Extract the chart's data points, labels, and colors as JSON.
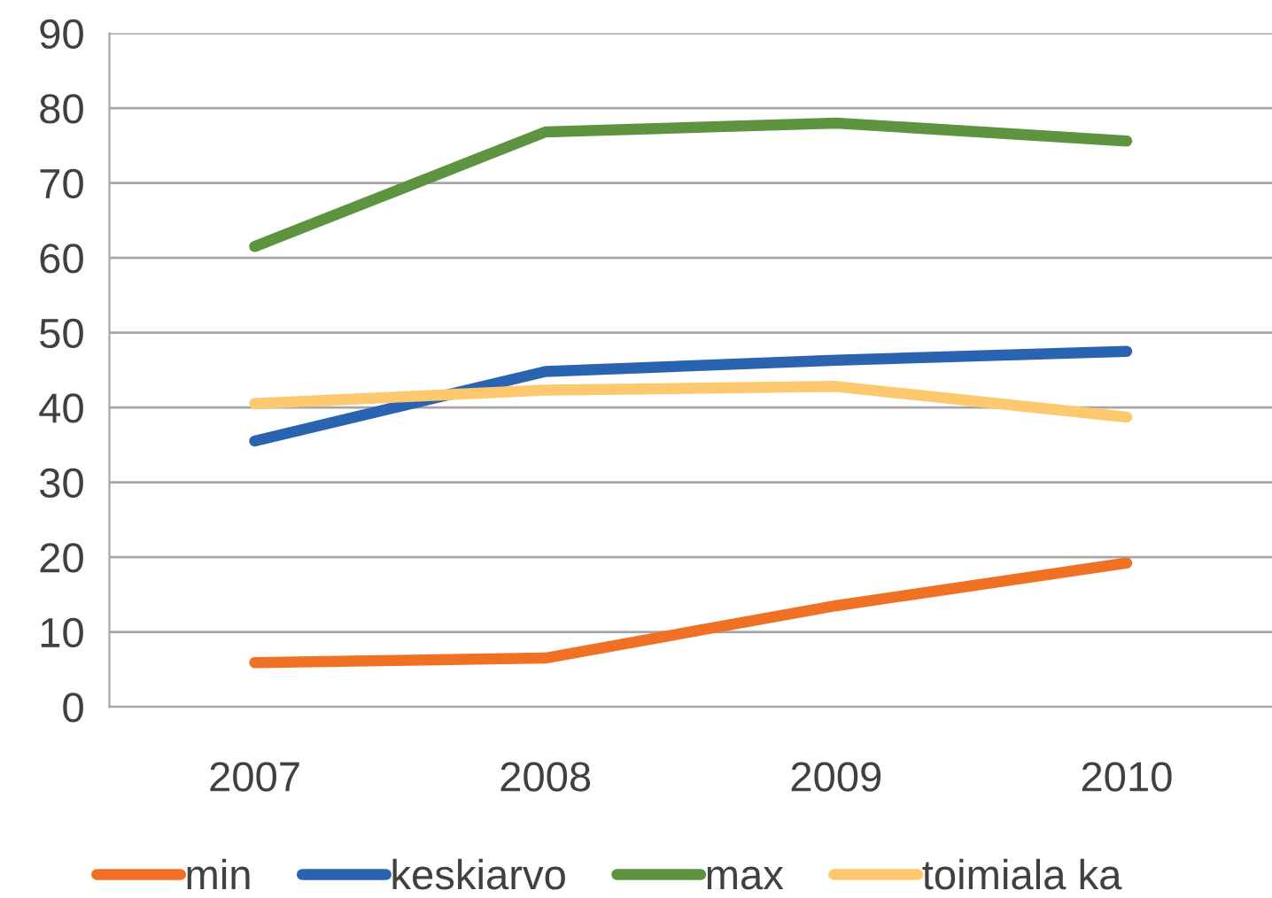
{
  "chart_data": {
    "type": "line",
    "categories": [
      "2007",
      "2008",
      "2009",
      "2010"
    ],
    "series": [
      {
        "name": "min",
        "color": "#f07024",
        "values": [
          5.9,
          6.5,
          13.5,
          19.2
        ]
      },
      {
        "name": "keskiarvo",
        "color": "#2a64b0",
        "values": [
          35.5,
          44.8,
          46.3,
          47.5
        ]
      },
      {
        "name": "max",
        "color": "#5e9440",
        "values": [
          61.5,
          76.8,
          78.0,
          75.6
        ]
      },
      {
        "name": "toimiala ka",
        "color": "#fdc86e",
        "values": [
          40.5,
          42.3,
          42.8,
          38.7
        ]
      }
    ],
    "ylim": [
      0,
      90
    ],
    "yticks": [
      0,
      10,
      20,
      30,
      40,
      50,
      60,
      70,
      80,
      90
    ],
    "grid": "y",
    "legend": "bottom",
    "marker": "none",
    "line_style": "solid"
  }
}
